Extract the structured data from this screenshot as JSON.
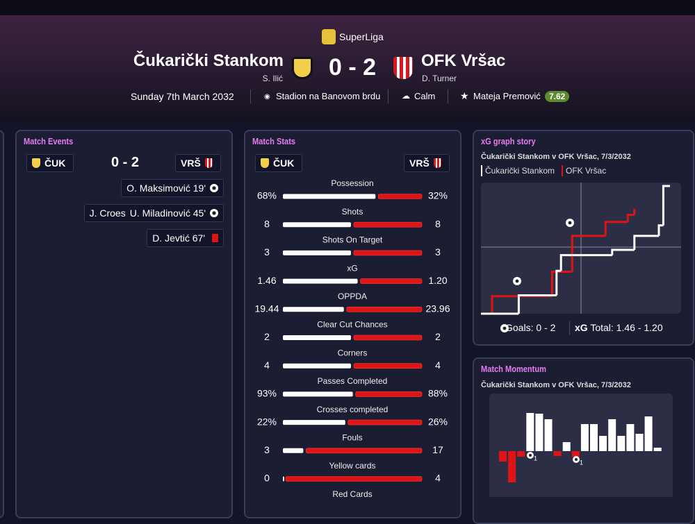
{
  "header": {
    "competition": "SuperLiga",
    "home_team": "Čukarički Stankom",
    "home_manager": "S. Ilić",
    "score": "0 - 2",
    "away_team": "OFK Vršac",
    "away_manager": "D. Turner",
    "date": "Sunday 7th March 2032",
    "stadium": "Stadion na Banovom brdu",
    "weather": "Calm",
    "player_of_match": "Mateja Premović",
    "player_rating": 7.62
  },
  "match_events": {
    "title": "Match Events",
    "home_abbr": "ČUK",
    "score": "0 - 2",
    "away_abbr": "VRŠ",
    "events": [
      {
        "texts": [
          "O. Maksimović 19'"
        ],
        "icon": "goal"
      },
      {
        "texts": [
          "J. Croes",
          "U. Miladinović 45'"
        ],
        "icon": "goal"
      },
      {
        "texts": [
          "D. Jevtić 67'"
        ],
        "icon": "red-card"
      }
    ]
  },
  "match_stats": {
    "title": "Match Stats",
    "home_abbr": "ČUK",
    "away_abbr": "VRŠ",
    "home_color": "#ffffff",
    "away_color": "#e01414",
    "rows": [
      {
        "label": "Possession",
        "home": 68,
        "away": 32,
        "home_label": "68%",
        "away_label": "32%"
      },
      {
        "label": "Shots",
        "home": 8,
        "away": 8
      },
      {
        "label": "Shots On Target",
        "home": 3,
        "away": 3
      },
      {
        "label": "xG",
        "home": 1.46,
        "away": 1.2,
        "away_label": "1.20"
      },
      {
        "label": "OPPDA",
        "home": 19.44,
        "away": 23.96
      },
      {
        "label": "Clear Cut Chances",
        "home": 2,
        "away": 2
      },
      {
        "label": "Corners",
        "home": 4,
        "away": 4
      },
      {
        "label": "Passes Completed",
        "home": 93,
        "away": 88,
        "home_label": "93%",
        "away_label": "88%"
      },
      {
        "label": "Crosses completed",
        "home": 22,
        "away": 26,
        "home_label": "22%",
        "away_label": "26%"
      },
      {
        "label": "Fouls",
        "home": 3,
        "away": 17
      },
      {
        "label": "Yellow cards",
        "home": 0,
        "away": 4
      },
      {
        "label": "Red Cards"
      }
    ]
  },
  "xg_graph": {
    "title": "xG graph story",
    "subtitle": "Čukarički Stankom v OFK Vršac, 7/3/2032",
    "goals_label": "Goals: 0 - 2",
    "xg_total_label": "xG",
    "xg_total": "Total: 1.46 - 1.20",
    "chart_data": {
      "type": "step",
      "xlim": [
        0,
        90
      ],
      "ylim": [
        0,
        1.5
      ],
      "series": [
        {
          "name": "Čukarički Stankom",
          "color": "#ffffff",
          "x": [
            0,
            17,
            34,
            36,
            59,
            69,
            80,
            82,
            85
          ],
          "values": [
            0,
            0.21,
            0.49,
            0.67,
            0.73,
            0.89,
            1.01,
            1.46,
            1.46
          ]
        },
        {
          "name": "OFK Vršac",
          "color": "#e01414",
          "x": [
            0,
            5,
            32,
            41,
            56,
            66,
            69
          ],
          "values": [
            0,
            0.2,
            0.48,
            0.89,
            1.05,
            1.13,
            1.2
          ]
        }
      ]
    }
  },
  "momentum": {
    "title": "Match Momentum",
    "subtitle": "Čukarički Stankom v OFK Vršac, 7/3/2032",
    "goal_marker_labels": [
      "1",
      "1"
    ],
    "chart_data": {
      "type": "bar",
      "ylim": [
        -80,
        80
      ],
      "positive_color": "#ffffff",
      "negative_color": "#e01414",
      "values": [
        -15,
        -45,
        -8,
        55,
        54,
        46,
        -7,
        13,
        -8,
        39,
        39,
        22,
        46,
        22,
        39,
        25,
        50,
        5
      ]
    }
  }
}
